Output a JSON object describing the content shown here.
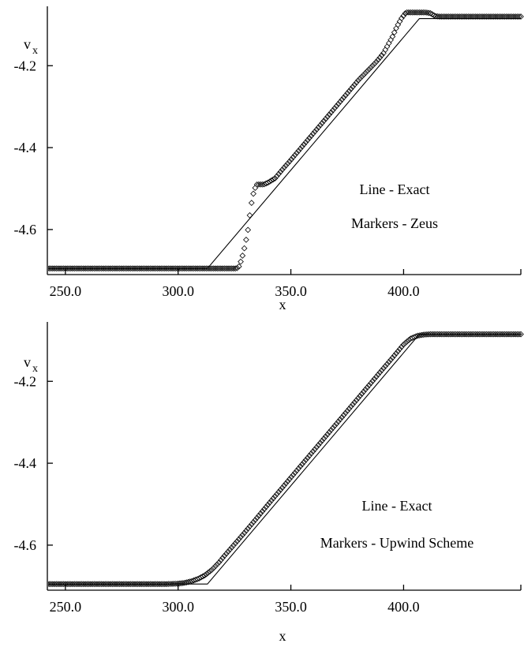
{
  "chart_data": [
    {
      "type": "line",
      "panel": "top",
      "xlabel": "x",
      "ylabel": "v",
      "ylabel_sub": "x",
      "xlim": [
        242,
        452
      ],
      "ylim": [
        -4.71,
        -4.055
      ],
      "xticks": [
        250,
        300,
        350,
        400
      ],
      "xtick_labels": [
        "250.0",
        "300.0",
        "350.0",
        "400.0"
      ],
      "yticks": [
        -4.2,
        -4.4,
        -4.6
      ],
      "ytick_labels": [
        "-4.2",
        "-4.4",
        "-4.6"
      ],
      "grid": false,
      "annotations": [
        "Line - Exact",
        "Markers - Zeus"
      ],
      "series": [
        {
          "style": "line",
          "x": [
            242,
            313,
            407,
            452
          ],
          "y": [
            -4.695,
            -4.695,
            -4.085,
            -4.085
          ]
        },
        {
          "style": "diamond-markers",
          "x": [
            242,
            326,
            327,
            328,
            329,
            330,
            331,
            332,
            333,
            334,
            335,
            336,
            338,
            340,
            343,
            346,
            350,
            360,
            370,
            380,
            388,
            391,
            393,
            395,
            397,
            399,
            401,
            403,
            407,
            410,
            412,
            414,
            416,
            418,
            452
          ],
          "y": [
            -4.695,
            -4.695,
            -4.69,
            -4.675,
            -4.655,
            -4.63,
            -4.6,
            -4.555,
            -4.52,
            -4.5,
            -4.49,
            -4.49,
            -4.49,
            -4.485,
            -4.475,
            -4.455,
            -4.43,
            -4.365,
            -4.3,
            -4.235,
            -4.19,
            -4.17,
            -4.15,
            -4.13,
            -4.105,
            -4.085,
            -4.07,
            -4.07,
            -4.07,
            -4.07,
            -4.072,
            -4.079,
            -4.08,
            -4.08,
            -4.08
          ]
        }
      ]
    },
    {
      "type": "line",
      "panel": "bottom",
      "xlabel": "x",
      "ylabel": "v",
      "ylabel_sub": "x",
      "xlim": [
        242,
        452
      ],
      "ylim": [
        -4.71,
        -4.055
      ],
      "xticks": [
        250,
        300,
        350,
        400
      ],
      "xtick_labels": [
        "250.0",
        "300.0",
        "350.0",
        "400.0"
      ],
      "yticks": [
        -4.2,
        -4.4,
        -4.6
      ],
      "ytick_labels": [
        "-4.2",
        "-4.4",
        "-4.6"
      ],
      "grid": false,
      "annotations": [
        "Line - Exact",
        "Markers - Upwind Scheme"
      ],
      "series": [
        {
          "style": "line",
          "x": [
            242,
            313,
            407,
            452
          ],
          "y": [
            -4.695,
            -4.695,
            -4.085,
            -4.085
          ]
        },
        {
          "style": "diamond-markers",
          "x": [
            242,
            295,
            300,
            303,
            306,
            309,
            312,
            315,
            318,
            321,
            325,
            330,
            340,
            350,
            360,
            370,
            380,
            390,
            395,
            400,
            403,
            406,
            409,
            412,
            415,
            420,
            425,
            452
          ],
          "y": [
            -4.695,
            -4.695,
            -4.694,
            -4.692,
            -4.688,
            -4.682,
            -4.673,
            -4.66,
            -4.643,
            -4.623,
            -4.598,
            -4.566,
            -4.5,
            -4.435,
            -4.37,
            -4.305,
            -4.24,
            -4.175,
            -4.143,
            -4.11,
            -4.096,
            -4.089,
            -4.086,
            -4.085,
            -4.085,
            -4.085,
            -4.085,
            -4.085
          ]
        }
      ]
    }
  ]
}
